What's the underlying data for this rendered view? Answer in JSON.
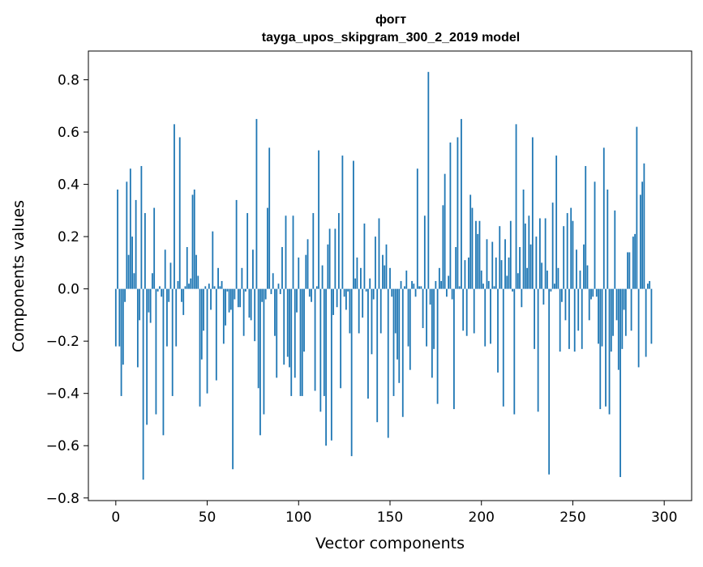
{
  "chart_data": {
    "type": "bar",
    "title_line1": "фогт",
    "title_line2": "tayga_upos_skipgram_300_2_2019 model",
    "xlabel": "Vector components",
    "ylabel": "Components values",
    "xlim": [
      -15,
      315
    ],
    "ylim": [
      -0.81,
      0.91
    ],
    "x_ticks": [
      0,
      50,
      100,
      150,
      200,
      250,
      300
    ],
    "x_tick_labels": [
      "0",
      "50",
      "100",
      "150",
      "200",
      "250",
      "300"
    ],
    "y_ticks": [
      -0.8,
      -0.6,
      -0.4,
      -0.2,
      0.0,
      0.2,
      0.4,
      0.6,
      0.8
    ],
    "y_tick_labels": [
      "−0.8",
      "−0.6",
      "−0.4",
      "−0.2",
      "0.0",
      "0.2",
      "0.4",
      "0.6",
      "0.8"
    ],
    "bar_color": "#1f77b4",
    "values": [
      -0.22,
      0.38,
      -0.22,
      -0.41,
      -0.29,
      -0.05,
      0.41,
      0.13,
      0.46,
      0.2,
      0.06,
      0.34,
      -0.3,
      -0.12,
      0.47,
      -0.73,
      0.29,
      -0.52,
      -0.09,
      -0.13,
      0.06,
      0.31,
      -0.48,
      -0.01,
      0.01,
      -0.03,
      -0.56,
      0.15,
      -0.22,
      -0.05,
      0.1,
      -0.41,
      0.63,
      -0.22,
      0.03,
      0.58,
      -0.05,
      -0.1,
      0.01,
      0.16,
      0.02,
      0.04,
      0.36,
      0.38,
      0.13,
      0.05,
      -0.45,
      -0.27,
      -0.16,
      0.01,
      -0.4,
      0.02,
      -0.08,
      0.22,
      0.01,
      -0.35,
      0.08,
      0.01,
      0.03,
      -0.21,
      -0.14,
      -0.01,
      -0.09,
      -0.08,
      -0.69,
      -0.04,
      0.34,
      -0.07,
      -0.07,
      0.08,
      -0.18,
      -0.01,
      0.29,
      -0.11,
      -0.12,
      0.15,
      -0.2,
      0.65,
      -0.38,
      -0.56,
      -0.05,
      -0.48,
      -0.04,
      0.31,
      0.54,
      -0.02,
      0.06,
      -0.18,
      -0.34,
      0.02,
      -0.02,
      0.16,
      -0.29,
      0.28,
      -0.26,
      -0.3,
      -0.41,
      0.28,
      -0.34,
      -0.09,
      0.12,
      -0.41,
      -0.41,
      -0.24,
      0.13,
      0.19,
      -0.03,
      -0.05,
      0.29,
      -0.39,
      0.01,
      0.53,
      -0.47,
      0.09,
      -0.41,
      -0.6,
      0.17,
      0.23,
      -0.58,
      -0.1,
      0.23,
      -0.07,
      0.29,
      -0.38,
      0.51,
      -0.03,
      -0.08,
      -0.01,
      -0.17,
      -0.64,
      0.49,
      0.04,
      0.12,
      -0.17,
      0.08,
      -0.11,
      0.25,
      -0.01,
      -0.42,
      0.04,
      -0.25,
      -0.04,
      0.2,
      -0.51,
      0.27,
      -0.17,
      0.13,
      0.09,
      0.17,
      -0.57,
      0.08,
      -0.03,
      -0.41,
      -0.17,
      -0.27,
      -0.36,
      0.03,
      -0.49,
      0.01,
      0.07,
      -0.22,
      -0.31,
      0.03,
      0.02,
      -0.03,
      0.46,
      0.01,
      0.01,
      -0.15,
      0.28,
      -0.22,
      0.83,
      -0.06,
      -0.34,
      -0.23,
      0.03,
      -0.44,
      0.08,
      0.03,
      0.32,
      0.44,
      -0.03,
      0.05,
      0.56,
      -0.04,
      -0.46,
      0.16,
      0.58,
      0.01,
      0.65,
      -0.16,
      0.11,
      -0.18,
      0.12,
      0.36,
      0.31,
      -0.17,
      0.26,
      0.21,
      0.26,
      0.07,
      0.02,
      -0.22,
      0.19,
      0.03,
      -0.21,
      0.18,
      0.01,
      0.12,
      -0.32,
      0.24,
      0.11,
      -0.45,
      0.19,
      0.05,
      0.12,
      0.26,
      -0.01,
      -0.48,
      0.63,
      0.06,
      0.16,
      -0.07,
      0.38,
      0.25,
      0.08,
      0.28,
      0.17,
      0.58,
      -0.23,
      0.2,
      -0.47,
      0.27,
      0.1,
      -0.06,
      0.27,
      0.07,
      -0.71,
      -0.01,
      0.33,
      0.02,
      0.51,
      0.08,
      -0.24,
      -0.05,
      0.24,
      -0.12,
      0.29,
      -0.23,
      0.31,
      0.26,
      -0.24,
      0.15,
      -0.16,
      0.07,
      -0.23,
      0.17,
      0.47,
      0.09,
      -0.12,
      -0.04,
      -0.03,
      0.41,
      -0.03,
      -0.21,
      -0.46,
      -0.22,
      0.54,
      -0.45,
      0.38,
      -0.48,
      -0.24,
      -0.18,
      0.3,
      -0.12,
      -0.31,
      -0.72,
      -0.23,
      -0.08,
      -0.18,
      0.14,
      0.14,
      -0.16,
      0.2,
      0.21,
      0.62,
      -0.3,
      0.36,
      0.41,
      0.48,
      -0.26,
      0.02,
      0.03,
      -0.21
    ]
  }
}
